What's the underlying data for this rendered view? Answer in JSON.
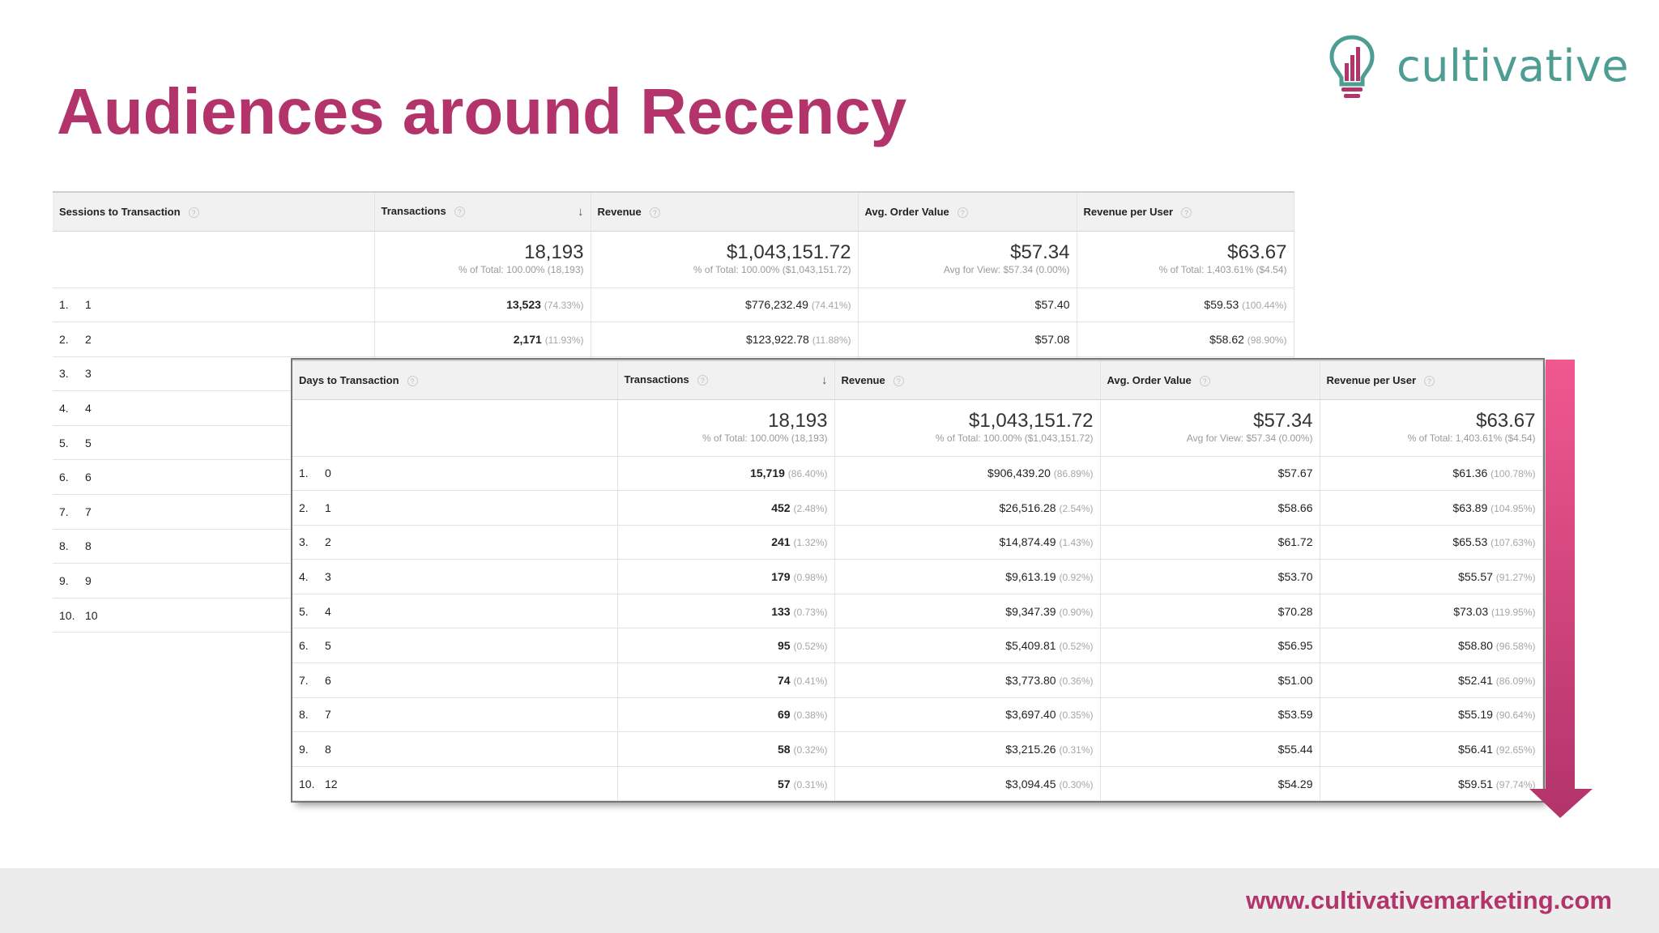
{
  "title": "Audiences around Recency",
  "logo": {
    "text": "cultivative",
    "icon": "lightbulb-icon",
    "color": "#4e9d92"
  },
  "footer": {
    "url": "www.cultivativemarketing.com"
  },
  "colors": {
    "accent": "#b3336b",
    "arrow_top": "#f0588f",
    "arrow_bottom": "#b3336b"
  },
  "sessions_table": {
    "headers": [
      "Sessions to Transaction",
      "Transactions",
      "Revenue",
      "Avg. Order Value",
      "Revenue per User"
    ],
    "totals": [
      {
        "main": "18,193",
        "sub": "% of Total: 100.00% (18,193)"
      },
      {
        "main": "$1,043,151.72",
        "sub": "% of Total: 100.00% ($1,043,151.72)"
      },
      {
        "main": "$57.34",
        "sub": "Avg for View: $57.34 (0.00%)"
      },
      {
        "main": "$63.67",
        "sub": "% of Total: 1,403.61% ($4.54)"
      }
    ],
    "rows": [
      {
        "idx": "1.",
        "dim": "1",
        "tx": "13,523",
        "tx_pct": "(74.33%)",
        "rev": "$776,232.49",
        "rev_pct": "(74.41%)",
        "aov": "$57.40",
        "rpu": "$59.53",
        "rpu_pct": "(100.44%)"
      },
      {
        "idx": "2.",
        "dim": "2",
        "tx": "2,171",
        "tx_pct": "(11.93%)",
        "rev": "$123,922.78",
        "rev_pct": "(11.88%)",
        "aov": "$57.08",
        "rpu": "$58.62",
        "rpu_pct": "(98.90%)"
      },
      {
        "idx": "3.",
        "dim": "3"
      },
      {
        "idx": "4.",
        "dim": "4"
      },
      {
        "idx": "5.",
        "dim": "5"
      },
      {
        "idx": "6.",
        "dim": "6"
      },
      {
        "idx": "7.",
        "dim": "7"
      },
      {
        "idx": "8.",
        "dim": "8"
      },
      {
        "idx": "9.",
        "dim": "9"
      },
      {
        "idx": "10.",
        "dim": "10"
      }
    ]
  },
  "days_table": {
    "headers": [
      "Days to Transaction",
      "Transactions",
      "Revenue",
      "Avg. Order Value",
      "Revenue per User"
    ],
    "totals": [
      {
        "main": "18,193",
        "sub": "% of Total: 100.00% (18,193)"
      },
      {
        "main": "$1,043,151.72",
        "sub": "% of Total: 100.00% ($1,043,151.72)"
      },
      {
        "main": "$57.34",
        "sub": "Avg for View: $57.34 (0.00%)"
      },
      {
        "main": "$63.67",
        "sub": "% of Total: 1,403.61% ($4.54)"
      }
    ],
    "rows": [
      {
        "idx": "1.",
        "dim": "0",
        "tx": "15,719",
        "tx_pct": "(86.40%)",
        "rev": "$906,439.20",
        "rev_pct": "(86.89%)",
        "aov": "$57.67",
        "rpu": "$61.36",
        "rpu_pct": "(100.78%)"
      },
      {
        "idx": "2.",
        "dim": "1",
        "tx": "452",
        "tx_pct": "(2.48%)",
        "rev": "$26,516.28",
        "rev_pct": "(2.54%)",
        "aov": "$58.66",
        "rpu": "$63.89",
        "rpu_pct": "(104.95%)"
      },
      {
        "idx": "3.",
        "dim": "2",
        "tx": "241",
        "tx_pct": "(1.32%)",
        "rev": "$14,874.49",
        "rev_pct": "(1.43%)",
        "aov": "$61.72",
        "rpu": "$65.53",
        "rpu_pct": "(107.63%)"
      },
      {
        "idx": "4.",
        "dim": "3",
        "tx": "179",
        "tx_pct": "(0.98%)",
        "rev": "$9,613.19",
        "rev_pct": "(0.92%)",
        "aov": "$53.70",
        "rpu": "$55.57",
        "rpu_pct": "(91.27%)"
      },
      {
        "idx": "5.",
        "dim": "4",
        "tx": "133",
        "tx_pct": "(0.73%)",
        "rev": "$9,347.39",
        "rev_pct": "(0.90%)",
        "aov": "$70.28",
        "rpu": "$73.03",
        "rpu_pct": "(119.95%)"
      },
      {
        "idx": "6.",
        "dim": "5",
        "tx": "95",
        "tx_pct": "(0.52%)",
        "rev": "$5,409.81",
        "rev_pct": "(0.52%)",
        "aov": "$56.95",
        "rpu": "$58.80",
        "rpu_pct": "(96.58%)"
      },
      {
        "idx": "7.",
        "dim": "6",
        "tx": "74",
        "tx_pct": "(0.41%)",
        "rev": "$3,773.80",
        "rev_pct": "(0.36%)",
        "aov": "$51.00",
        "rpu": "$52.41",
        "rpu_pct": "(86.09%)"
      },
      {
        "idx": "8.",
        "dim": "7",
        "tx": "69",
        "tx_pct": "(0.38%)",
        "rev": "$3,697.40",
        "rev_pct": "(0.35%)",
        "aov": "$53.59",
        "rpu": "$55.19",
        "rpu_pct": "(90.64%)"
      },
      {
        "idx": "9.",
        "dim": "8",
        "tx": "58",
        "tx_pct": "(0.32%)",
        "rev": "$3,215.26",
        "rev_pct": "(0.31%)",
        "aov": "$55.44",
        "rpu": "$56.41",
        "rpu_pct": "(92.65%)"
      },
      {
        "idx": "10.",
        "dim": "12",
        "tx": "57",
        "tx_pct": "(0.31%)",
        "rev": "$3,094.45",
        "rev_pct": "(0.30%)",
        "aov": "$54.29",
        "rpu": "$59.51",
        "rpu_pct": "(97.74%)"
      }
    ]
  }
}
